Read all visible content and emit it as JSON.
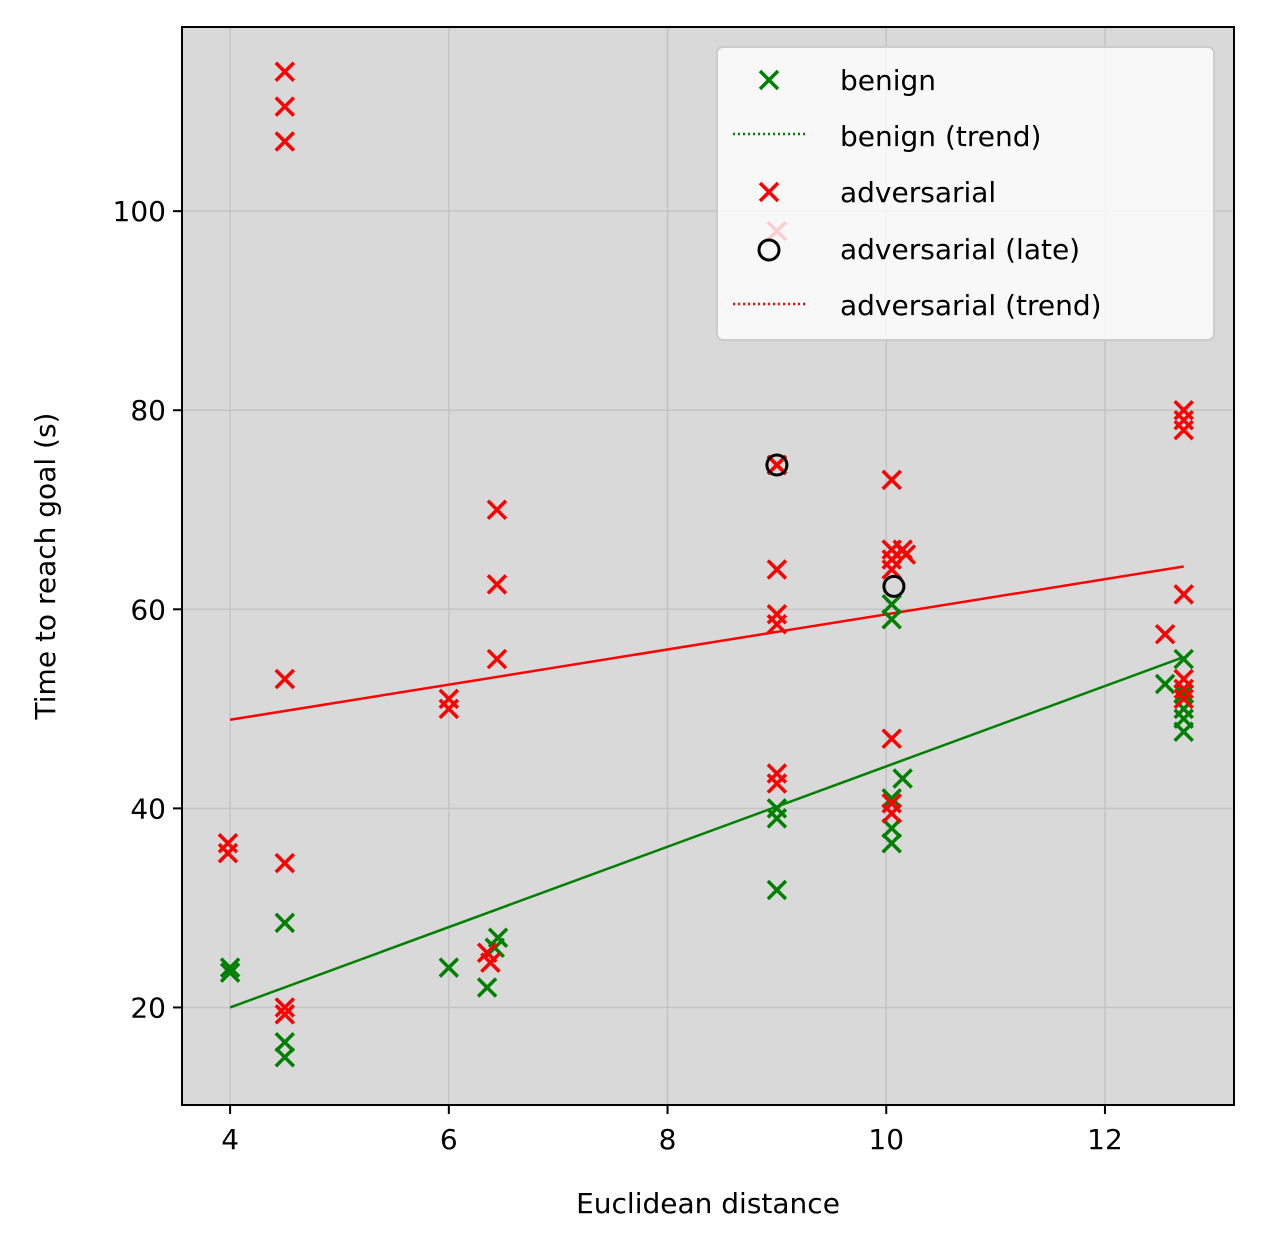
{
  "chart_data": {
    "type": "scatter",
    "title": "",
    "xlabel": "Euclidean distance",
    "ylabel": "Time to reach goal (s)",
    "xlim": [
      3.56,
      13.18
    ],
    "ylim": [
      10.2,
      118.5
    ],
    "xticks": [
      4,
      6,
      8,
      10,
      12
    ],
    "yticks": [
      20,
      40,
      60,
      80,
      100
    ],
    "grid": true,
    "legend_position": "top-right",
    "legend": [
      {
        "label": "benign",
        "kind": "scatter-x",
        "color": "#008000"
      },
      {
        "label": "benign (trend)",
        "kind": "dotted-line",
        "color": "#008000"
      },
      {
        "label": "adversarial",
        "kind": "scatter-x",
        "color": "#ff0000"
      },
      {
        "label": "adversarial (late)",
        "kind": "circle",
        "color": "#000000"
      },
      {
        "label": "adversarial (trend)",
        "kind": "dotted-line",
        "color": "#ff0000"
      }
    ],
    "series": [
      {
        "name": "benign",
        "marker": "x",
        "color": "#008000",
        "points": [
          [
            4.0,
            23.5
          ],
          [
            4.0,
            24.0
          ],
          [
            4.5,
            28.5
          ],
          [
            4.5,
            16.5
          ],
          [
            4.5,
            15.0
          ],
          [
            6.0,
            24.0
          ],
          [
            6.35,
            22.0
          ],
          [
            6.42,
            26.0
          ],
          [
            6.45,
            27.0
          ],
          [
            9.0,
            40.0
          ],
          [
            9.0,
            39.0
          ],
          [
            9.0,
            31.8
          ],
          [
            9.0,
            74.5
          ],
          [
            10.05,
            60.5
          ],
          [
            10.05,
            59.0
          ],
          [
            10.05,
            41.0
          ],
          [
            10.05,
            38.0
          ],
          [
            10.05,
            36.5
          ],
          [
            10.15,
            43.0
          ],
          [
            12.55,
            52.5
          ],
          [
            12.72,
            55.0
          ],
          [
            12.72,
            51.5
          ],
          [
            12.72,
            50.0
          ],
          [
            12.72,
            49.0
          ],
          [
            12.72,
            47.7
          ]
        ]
      },
      {
        "name": "adversarial",
        "marker": "x",
        "color": "#ff0000",
        "points": [
          [
            3.98,
            36.5
          ],
          [
            3.98,
            35.5
          ],
          [
            4.5,
            114.0
          ],
          [
            4.5,
            110.5
          ],
          [
            4.5,
            107.0
          ],
          [
            4.5,
            53.0
          ],
          [
            4.5,
            34.5
          ],
          [
            4.5,
            20.0
          ],
          [
            4.5,
            19.3
          ],
          [
            6.0,
            51.0
          ],
          [
            6.0,
            50.0
          ],
          [
            6.35,
            25.5
          ],
          [
            6.38,
            24.5
          ],
          [
            6.44,
            70.0
          ],
          [
            6.44,
            62.5
          ],
          [
            6.44,
            55.0
          ],
          [
            9.0,
            98.0
          ],
          [
            9.0,
            74.5
          ],
          [
            9.0,
            64.0
          ],
          [
            9.0,
            59.5
          ],
          [
            9.0,
            58.5
          ],
          [
            9.0,
            43.5
          ],
          [
            9.0,
            42.5
          ],
          [
            10.05,
            73.0
          ],
          [
            10.05,
            66.0
          ],
          [
            10.05,
            65.0
          ],
          [
            10.05,
            64.0
          ],
          [
            10.05,
            47.0
          ],
          [
            10.05,
            40.5
          ],
          [
            10.05,
            39.5
          ],
          [
            10.15,
            66.0
          ],
          [
            10.18,
            65.5
          ],
          [
            12.55,
            57.5
          ],
          [
            12.72,
            80.0
          ],
          [
            12.72,
            79.0
          ],
          [
            12.72,
            78.0
          ],
          [
            12.72,
            61.5
          ],
          [
            12.72,
            53.0
          ],
          [
            12.72,
            52.0
          ],
          [
            12.72,
            51.0
          ]
        ]
      },
      {
        "name": "adversarial (late)",
        "marker": "circle",
        "color": "#000000",
        "points": [
          [
            9.0,
            74.5
          ],
          [
            10.07,
            62.3
          ]
        ]
      }
    ],
    "trends": [
      {
        "name": "benign (trend)",
        "color": "#008000",
        "x": [
          4.0,
          12.72
        ],
        "y": [
          20.0,
          55.2
        ]
      },
      {
        "name": "adversarial (trend)",
        "color": "#ff0000",
        "x": [
          4.0,
          12.72
        ],
        "y": [
          48.9,
          64.3
        ]
      }
    ]
  }
}
